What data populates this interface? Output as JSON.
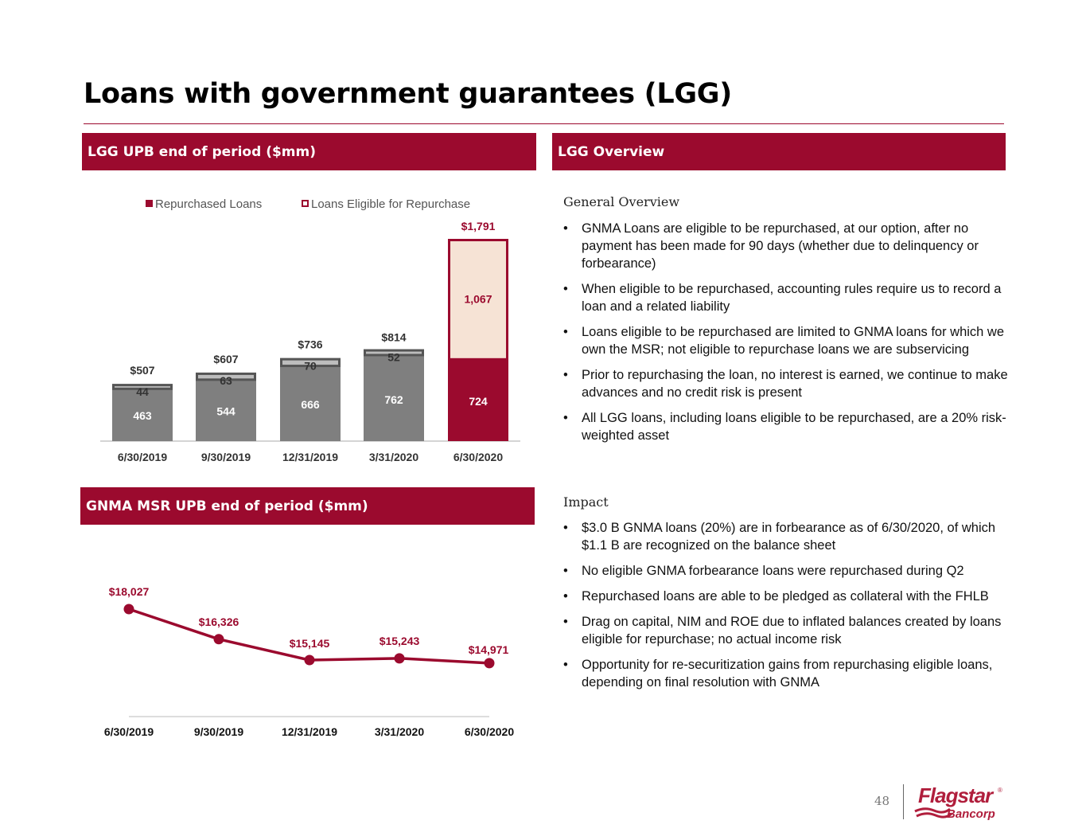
{
  "page": {
    "title": "Loans with government guarantees (LGG)",
    "page_number": "48"
  },
  "colors": {
    "brand_red": "#9b0a2e",
    "repurchased_gray": "#7f7f7f",
    "eligible_fill": "#f6e3d5",
    "cap_gray": "#bdbdbd"
  },
  "left_top": {
    "band_title": "LGG UPB end of period ($mm)"
  },
  "left_bottom": {
    "band_title": "GNMA MSR UPB end of period ($mm)"
  },
  "overview": {
    "band_title": "LGG Overview",
    "general": {
      "heading": "General Overview",
      "bullets": [
        "GNMA Loans are eligible to be repurchased, at our option, after no payment has been made for 90 days (whether due to delinquency or forbearance)",
        "When eligible to be repurchased, accounting rules require us to record a loan and a related liability",
        "Loans eligible to be repurchased are limited to GNMA loans for which we own the MSR; not eligible to repurchase loans we are subservicing",
        "Prior to repurchasing the loan, no interest is earned, we continue to make advances and no credit risk is present",
        "All LGG loans, including loans eligible to be repurchased, are a 20% risk-weighted asset"
      ]
    },
    "impact": {
      "heading": "Impact",
      "bullets": [
        "$3.0 B GNMA loans (20%) are in forbearance as of 6/30/2020, of which $1.1 B are recognized on the balance sheet",
        "No eligible GNMA forbearance loans were repurchased during Q2",
        "Repurchased loans are able to be pledged as collateral with the FHLB",
        "Drag on capital, NIM and ROE due to inflated balances created by loans eligible for repurchase; no actual income risk",
        "Opportunity for re-securitization gains from repurchasing eligible loans, depending on final resolution with GNMA"
      ]
    }
  },
  "logo": {
    "name": "Flagstar",
    "sub": "Bancorp",
    "mark": "®"
  },
  "chart_data": [
    {
      "type": "bar",
      "stacked": true,
      "legend_position": "top",
      "categories": [
        "6/30/2019",
        "9/30/2019",
        "12/31/2019",
        "3/31/2020",
        "6/30/2020"
      ],
      "series": [
        {
          "name": "Repurchased Loans",
          "values": [
            463,
            544,
            666,
            762,
            724
          ],
          "labels": [
            "463",
            "544",
            "666",
            "762",
            "724"
          ]
        },
        {
          "name": "Loans Eligible for Repurchase",
          "values": [
            44,
            63,
            70,
            52,
            1067
          ],
          "labels": [
            "44",
            "63",
            "70",
            "52",
            "1,067"
          ]
        }
      ],
      "totals": [
        507,
        607,
        736,
        814,
        1791
      ],
      "total_labels": [
        "$507",
        "$607",
        "$736",
        "$814",
        "$1,791"
      ],
      "ylim": [
        0,
        1791
      ],
      "grid": false
    },
    {
      "type": "line",
      "x": [
        "6/30/2019",
        "9/30/2019",
        "12/31/2019",
        "3/31/2020",
        "6/30/2020"
      ],
      "values": [
        18027,
        16326,
        15145,
        15243,
        14971
      ],
      "labels": [
        "$18,027",
        "$16,326",
        "$15,145",
        "$15,243",
        "$14,971"
      ],
      "ylim": [
        11950,
        18027
      ],
      "grid": false
    }
  ]
}
